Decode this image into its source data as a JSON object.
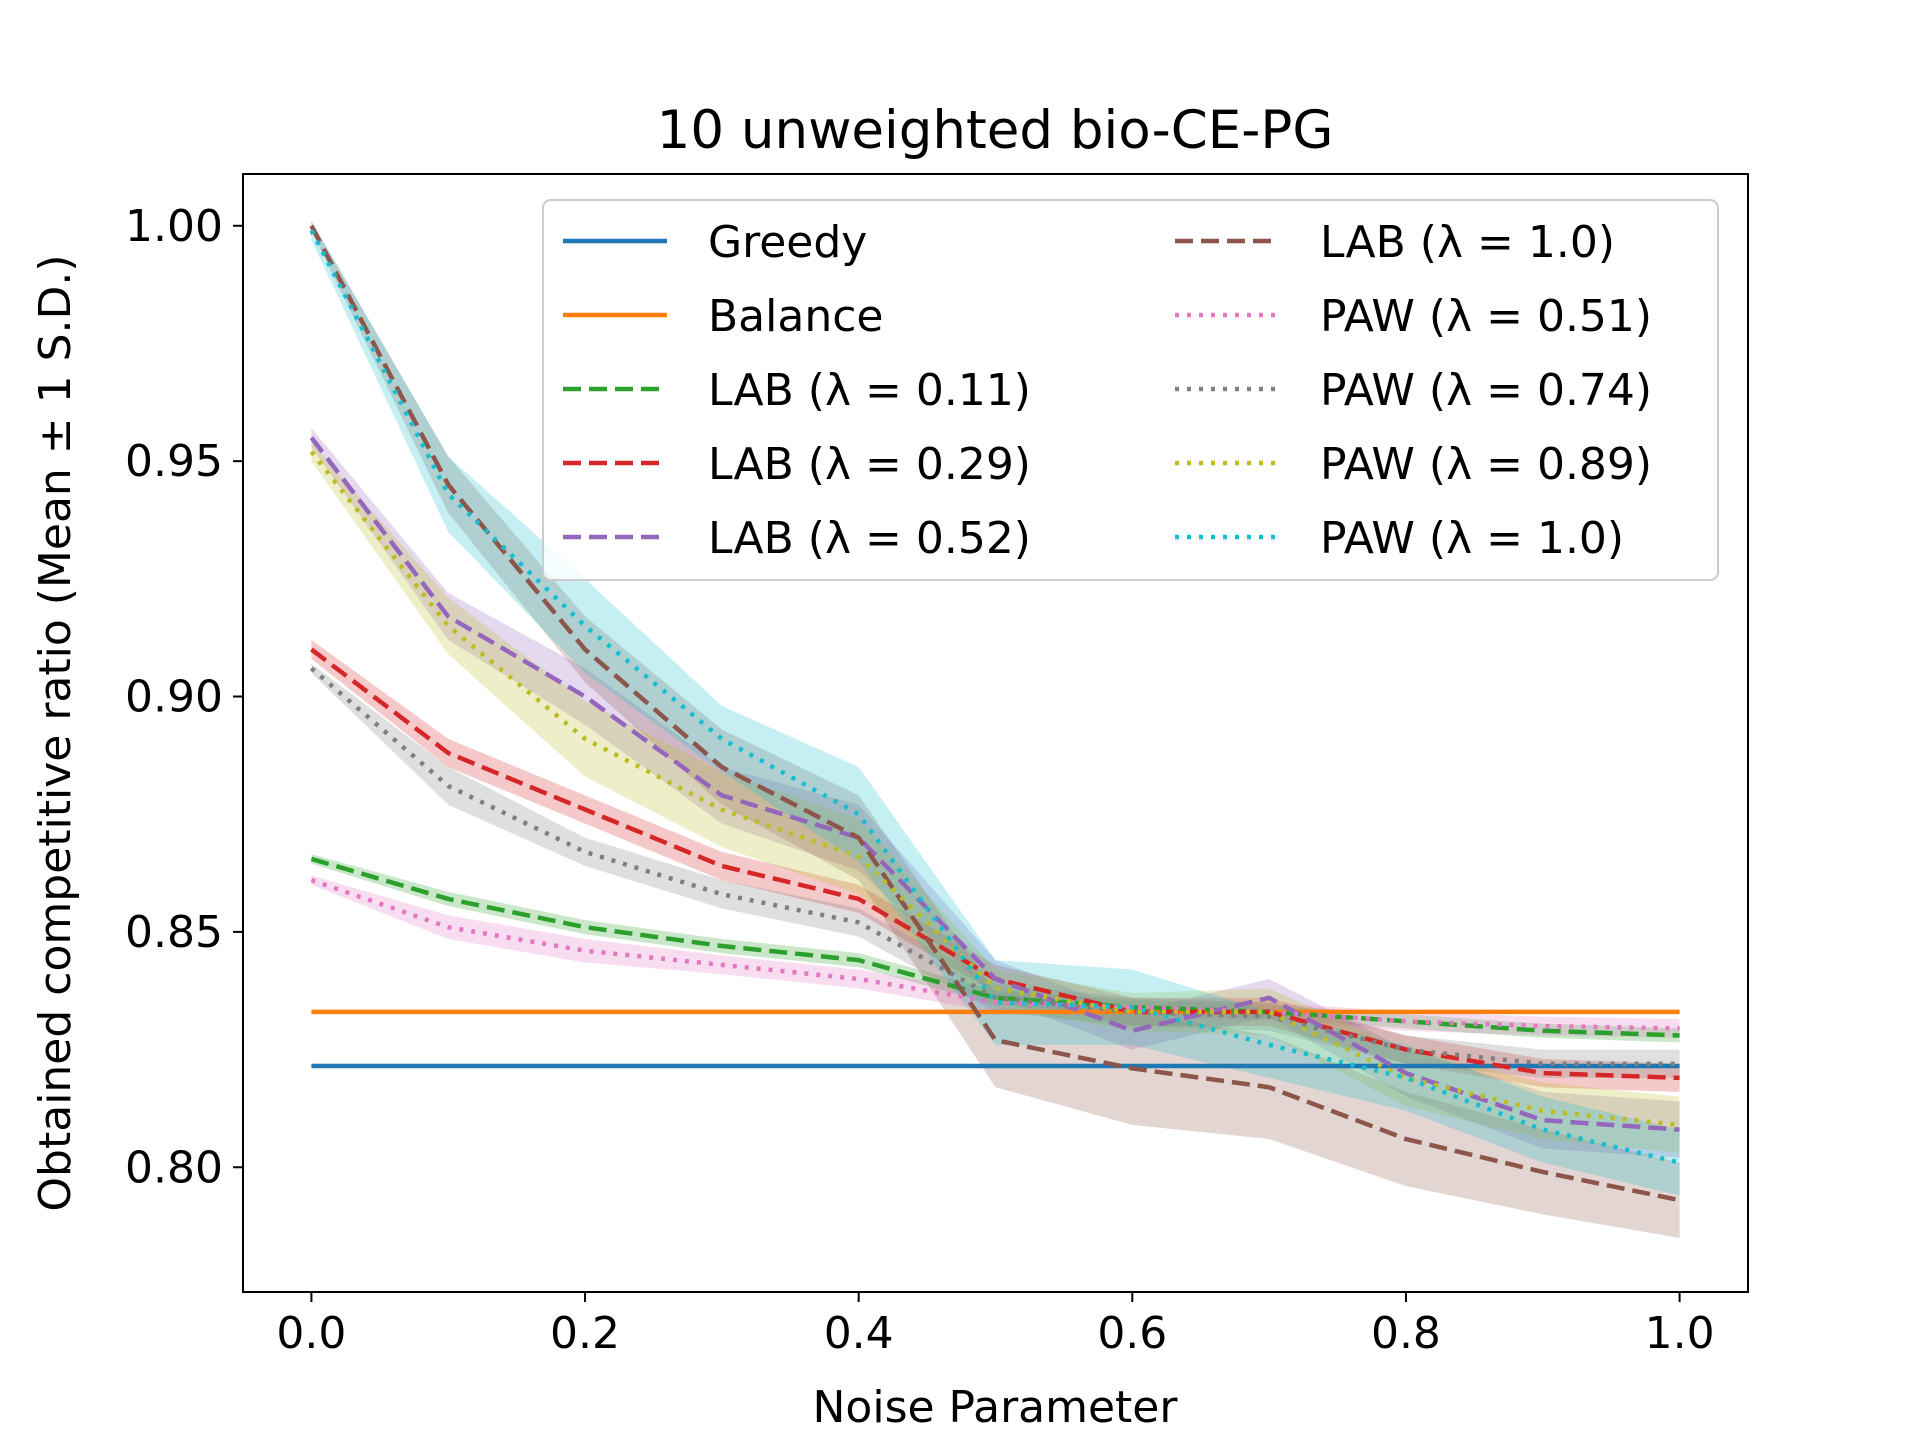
{
  "chart_data": {
    "type": "line",
    "title": "10 unweighted bio-CE-PG",
    "xlabel": "Noise Parameter",
    "ylabel": "Obtained competitive ratio (Mean ± 1 S.D.)",
    "xlim": [
      -0.05,
      1.05
    ],
    "ylim": [
      0.7735,
      1.011
    ],
    "xticks": [
      0.0,
      0.2,
      0.4,
      0.6,
      0.8,
      1.0
    ],
    "xtick_labels": [
      "0.0",
      "0.2",
      "0.4",
      "0.6",
      "0.8",
      "1.0"
    ],
    "yticks": [
      0.8,
      0.85,
      0.9,
      0.95,
      1.0
    ],
    "ytick_labels": [
      "0.80",
      "0.85",
      "0.90",
      "0.95",
      "1.00"
    ],
    "legend_position": "top-right",
    "x": [
      0.0,
      0.1,
      0.2,
      0.3,
      0.4,
      0.5,
      0.6,
      0.7,
      0.8,
      0.9,
      1.0
    ],
    "series": [
      {
        "name": "Greedy",
        "color": "#1f77b4",
        "style": "solid",
        "values": [
          0.8215,
          0.8215,
          0.8215,
          0.8215,
          0.8215,
          0.8215,
          0.8215,
          0.8215,
          0.8215,
          0.8215,
          0.8215
        ],
        "sd": [
          0,
          0,
          0,
          0,
          0,
          0,
          0,
          0,
          0,
          0,
          0
        ]
      },
      {
        "name": "Balance",
        "color": "#ff7f0e",
        "style": "solid",
        "values": [
          0.833,
          0.833,
          0.833,
          0.833,
          0.833,
          0.833,
          0.833,
          0.833,
          0.833,
          0.833,
          0.833
        ],
        "sd": [
          0,
          0,
          0,
          0,
          0,
          0,
          0,
          0,
          0,
          0,
          0
        ]
      },
      {
        "name": "LAB (λ = 0.11)",
        "color": "#2ca02c",
        "style": "dashed",
        "values": [
          0.8655,
          0.857,
          0.851,
          0.847,
          0.844,
          0.836,
          0.834,
          0.833,
          0.831,
          0.829,
          0.828
        ],
        "sd": [
          0.001,
          0.0015,
          0.0015,
          0.0015,
          0.0015,
          0.0015,
          0.0015,
          0.0015,
          0.0015,
          0.0015,
          0.0015
        ]
      },
      {
        "name": "LAB (λ = 0.29)",
        "color": "#d62728",
        "style": "dashed",
        "values": [
          0.91,
          0.888,
          0.876,
          0.864,
          0.857,
          0.84,
          0.833,
          0.833,
          0.825,
          0.82,
          0.819
        ],
        "sd": [
          0.002,
          0.003,
          0.003,
          0.003,
          0.003,
          0.003,
          0.003,
          0.003,
          0.003,
          0.003,
          0.003
        ]
      },
      {
        "name": "LAB (λ = 0.52)",
        "color": "#9467bd",
        "style": "dashed",
        "values": [
          0.955,
          0.917,
          0.9,
          0.879,
          0.87,
          0.84,
          0.829,
          0.836,
          0.82,
          0.81,
          0.808
        ],
        "sd": [
          0.002,
          0.005,
          0.006,
          0.006,
          0.007,
          0.004,
          0.004,
          0.004,
          0.005,
          0.006,
          0.006
        ]
      },
      {
        "name": "LAB (λ = 1.0)",
        "color": "#8c564b",
        "style": "dashed",
        "values": [
          1.0,
          0.945,
          0.91,
          0.885,
          0.87,
          0.827,
          0.821,
          0.817,
          0.806,
          0.799,
          0.793
        ],
        "sd": [
          0.001,
          0.006,
          0.007,
          0.008,
          0.009,
          0.01,
          0.012,
          0.011,
          0.01,
          0.009,
          0.008
        ]
      },
      {
        "name": "PAW (λ = 0.51)",
        "color": "#e377c2",
        "style": "dotted",
        "values": [
          0.861,
          0.851,
          0.846,
          0.843,
          0.84,
          0.835,
          0.834,
          0.833,
          0.831,
          0.83,
          0.8295
        ],
        "sd": [
          0.001,
          0.0025,
          0.0025,
          0.002,
          0.002,
          0.002,
          0.002,
          0.002,
          0.002,
          0.002,
          0.002
        ]
      },
      {
        "name": "PAW (λ = 0.74)",
        "color": "#7f7f7f",
        "style": "dotted",
        "values": [
          0.906,
          0.881,
          0.867,
          0.858,
          0.852,
          0.836,
          0.833,
          0.832,
          0.825,
          0.822,
          0.822
        ],
        "sd": [
          0.001,
          0.004,
          0.003,
          0.003,
          0.003,
          0.003,
          0.003,
          0.003,
          0.003,
          0.003,
          0.003
        ]
      },
      {
        "name": "PAW (λ = 0.89)",
        "color": "#bcbd22",
        "style": "dotted",
        "values": [
          0.952,
          0.915,
          0.891,
          0.876,
          0.866,
          0.838,
          0.833,
          0.833,
          0.819,
          0.812,
          0.809
        ],
        "sd": [
          0.002,
          0.006,
          0.008,
          0.008,
          0.008,
          0.004,
          0.004,
          0.005,
          0.006,
          0.006,
          0.006
        ]
      },
      {
        "name": "PAW (λ = 1.0)",
        "color": "#17becf",
        "style": "dotted",
        "values": [
          0.999,
          0.943,
          0.915,
          0.891,
          0.875,
          0.835,
          0.834,
          0.826,
          0.819,
          0.808,
          0.801
        ],
        "sd": [
          0.002,
          0.008,
          0.01,
          0.007,
          0.01,
          0.009,
          0.008,
          0.007,
          0.007,
          0.007,
          0.007
        ]
      }
    ]
  }
}
